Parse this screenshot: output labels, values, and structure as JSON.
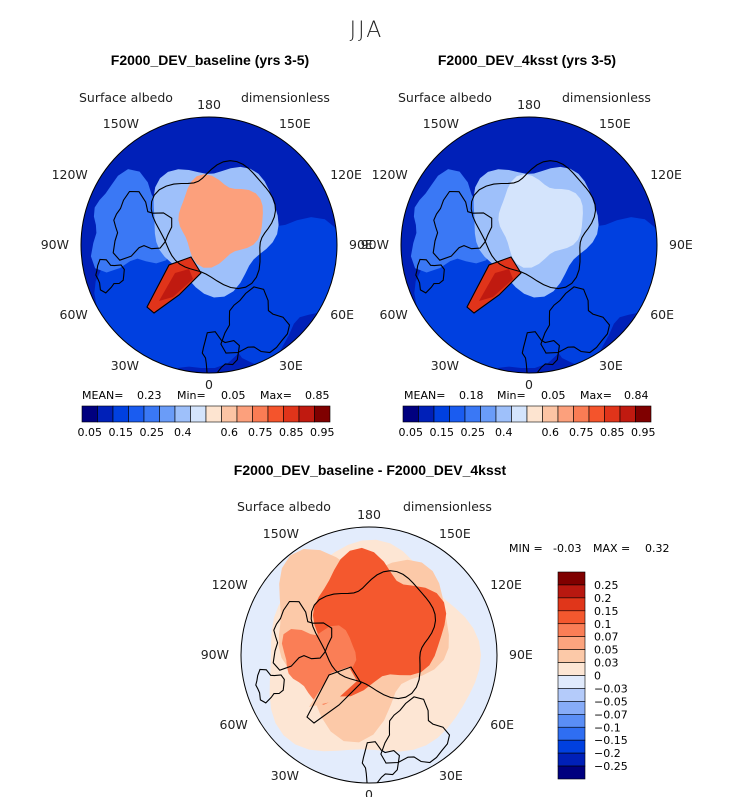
{
  "season": "JJA",
  "chart_data": [
    {
      "type": "heatmap",
      "projection": "north-polar-stereographic",
      "title": "F2000_DEV_baseline (yrs 3-5)",
      "variable": "Surface albedo",
      "units": "dimensionless",
      "stats": {
        "mean_label": "MEAN=",
        "mean": "0.23",
        "min_label": "Min=",
        "min": "0.05",
        "max_label": "Max=",
        "max": "0.85"
      },
      "central_albedo": 0.63,
      "greenland_albedo": 0.85,
      "lon_labels": [
        "180",
        "150E",
        "120E",
        "90E",
        "60E",
        "30E",
        "0",
        "30W",
        "60W",
        "90W",
        "120W",
        "150W"
      ]
    },
    {
      "type": "heatmap",
      "projection": "north-polar-stereographic",
      "title": "F2000_DEV_4ksst (yrs 3-5)",
      "variable": "Surface albedo",
      "units": "dimensionless",
      "stats": {
        "mean_label": "MEAN=",
        "mean": "0.18",
        "min_label": "Min=",
        "min": "0.05",
        "max_label": "Max=",
        "max": "0.84"
      },
      "central_albedo": 0.45,
      "greenland_albedo": 0.84,
      "lon_labels": [
        "180",
        "150E",
        "120E",
        "90E",
        "60E",
        "30E",
        "0",
        "30W",
        "60W",
        "90W",
        "120W",
        "150W"
      ]
    },
    {
      "type": "heatmap",
      "projection": "north-polar-stereographic",
      "title": "F2000_DEV_baseline - F2000_DEV_4ksst",
      "variable": "Surface albedo",
      "units": "dimensionless",
      "stats": {
        "min_label": "MIN =",
        "min": "-0.03",
        "max_label": "MAX =",
        "max": "0.32"
      },
      "central_difference": 0.15,
      "lon_labels": [
        "180",
        "150E",
        "120E",
        "90E",
        "60E",
        "30E",
        "0",
        "30W",
        "60W",
        "90W",
        "120W",
        "150W"
      ]
    }
  ],
  "colorbar_abs": {
    "colors": [
      "#00007f",
      "#0020b8",
      "#0040e0",
      "#1a5cf0",
      "#3a78f5",
      "#6a9cf8",
      "#9ec0fa",
      "#d4e4fc",
      "#fde4d0",
      "#fcc4a4",
      "#fca07c",
      "#fa7c54",
      "#f4542c",
      "#e0341a",
      "#c01a10",
      "#7f0000"
    ],
    "tick_labels": [
      "0.05",
      "0.15",
      "0.25",
      "0.4",
      "0.6",
      "0.75",
      "0.85",
      "0.95"
    ]
  },
  "colorbar_diff": {
    "colors": [
      "#00007f",
      "#0020b8",
      "#0040e0",
      "#2f6ef2",
      "#5a8ef6",
      "#87acf8",
      "#b4cbfa",
      "#e0eafc",
      "#fde6d4",
      "#fcc9a8",
      "#fca47e",
      "#fa7e56",
      "#f4582e",
      "#e0361a",
      "#b81810",
      "#7f0000"
    ],
    "tick_labels": [
      "-0.25",
      "-0.2",
      "-0.15",
      "-0.1",
      "-0.07",
      "-0.05",
      "-0.03",
      "0",
      "0.03",
      "0.05",
      "0.07",
      "0.1",
      "0.15",
      "0.2",
      "0.25"
    ]
  }
}
